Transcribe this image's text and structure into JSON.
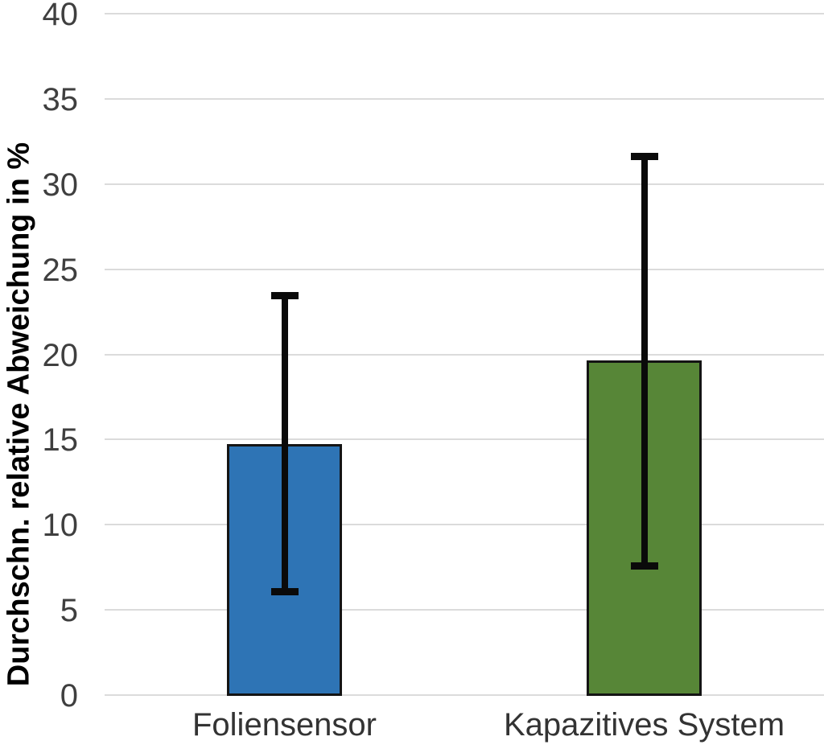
{
  "chart_data": {
    "type": "bar",
    "categories": [
      "Foliensensor",
      "Kapazitives System"
    ],
    "values": [
      14.8,
      19.7
    ],
    "error_upper": [
      23.7,
      31.9
    ],
    "error_lower": [
      5.9,
      7.4
    ],
    "title": "",
    "xlabel": "",
    "ylabel": "Durchschn. relative Abweichung in %",
    "ylim": [
      0,
      40
    ],
    "ytick_step": 5,
    "ytick_labels": [
      "0",
      "5",
      "10",
      "15",
      "20",
      "25",
      "30",
      "35",
      "40"
    ],
    "grid": true,
    "legend": false,
    "bar_colors": [
      "#2E74B5",
      "#578637"
    ],
    "bar_border_color": "#141414",
    "error_bar_color": "#0a0a0a",
    "gridline_color": "#DBDBDB",
    "tick_label_color": "#3F3F3F",
    "category_label_color": "#333333",
    "axis_title_color": "#000000",
    "background_color": "#ffffff"
  }
}
